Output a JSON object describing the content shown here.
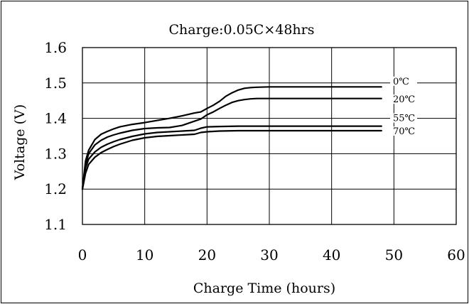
{
  "chart_data": {
    "type": "line",
    "title": "Charge:0.05C×48hrs",
    "xlabel": "Charge Time (hours)",
    "ylabel": "Voltage (V)",
    "xlim": [
      0,
      60
    ],
    "ylim": [
      1.1,
      1.6
    ],
    "xticks": [
      "0",
      "10",
      "20",
      "30",
      "40",
      "50",
      "60"
    ],
    "yticks": [
      "1.1",
      "1.2",
      "1.3",
      "1.4",
      "1.5",
      "1.6"
    ],
    "grid": true,
    "series": [
      {
        "name": "0℃",
        "x": [
          0,
          0.5,
          1,
          2,
          3,
          4,
          5,
          6,
          8,
          10,
          12,
          14,
          16,
          18,
          19,
          20,
          21,
          22,
          23,
          24,
          25,
          26,
          27,
          28,
          30,
          35,
          40,
          45,
          48
        ],
        "y": [
          1.2,
          1.28,
          1.31,
          1.34,
          1.355,
          1.363,
          1.37,
          1.376,
          1.383,
          1.388,
          1.394,
          1.4,
          1.407,
          1.415,
          1.418,
          1.428,
          1.437,
          1.448,
          1.462,
          1.472,
          1.48,
          1.485,
          1.487,
          1.488,
          1.489,
          1.489,
          1.489,
          1.489,
          1.489
        ]
      },
      {
        "name": "20℃",
        "x": [
          0,
          0.5,
          1,
          2,
          3,
          4,
          5,
          6,
          8,
          10,
          12,
          14,
          16,
          18,
          19,
          20,
          21,
          22,
          23,
          24,
          25,
          26,
          27,
          28,
          30,
          35,
          40,
          45,
          48
        ],
        "y": [
          1.2,
          1.27,
          1.3,
          1.325,
          1.338,
          1.347,
          1.353,
          1.358,
          1.366,
          1.371,
          1.373,
          1.374,
          1.38,
          1.392,
          1.398,
          1.41,
          1.418,
          1.428,
          1.437,
          1.445,
          1.45,
          1.453,
          1.455,
          1.456,
          1.456,
          1.456,
          1.456,
          1.456,
          1.456
        ]
      },
      {
        "name": "55℃",
        "x": [
          0,
          0.5,
          1,
          2,
          3,
          4,
          5,
          6,
          8,
          10,
          12,
          14,
          16,
          18,
          19,
          20,
          22,
          25,
          30,
          35,
          40,
          45,
          48
        ],
        "y": [
          1.2,
          1.26,
          1.285,
          1.305,
          1.318,
          1.327,
          1.334,
          1.34,
          1.349,
          1.356,
          1.36,
          1.362,
          1.364,
          1.366,
          1.372,
          1.376,
          1.377,
          1.378,
          1.378,
          1.378,
          1.378,
          1.378,
          1.378
        ]
      },
      {
        "name": "70℃",
        "x": [
          0,
          0.5,
          1,
          2,
          3,
          4,
          5,
          6,
          8,
          10,
          12,
          14,
          16,
          18,
          19,
          20,
          22,
          25,
          30,
          35,
          40,
          45,
          48
        ],
        "y": [
          1.2,
          1.245,
          1.27,
          1.29,
          1.303,
          1.312,
          1.32,
          1.327,
          1.338,
          1.345,
          1.349,
          1.351,
          1.353,
          1.355,
          1.36,
          1.362,
          1.364,
          1.365,
          1.365,
          1.365,
          1.365,
          1.365,
          1.365
        ]
      }
    ]
  }
}
